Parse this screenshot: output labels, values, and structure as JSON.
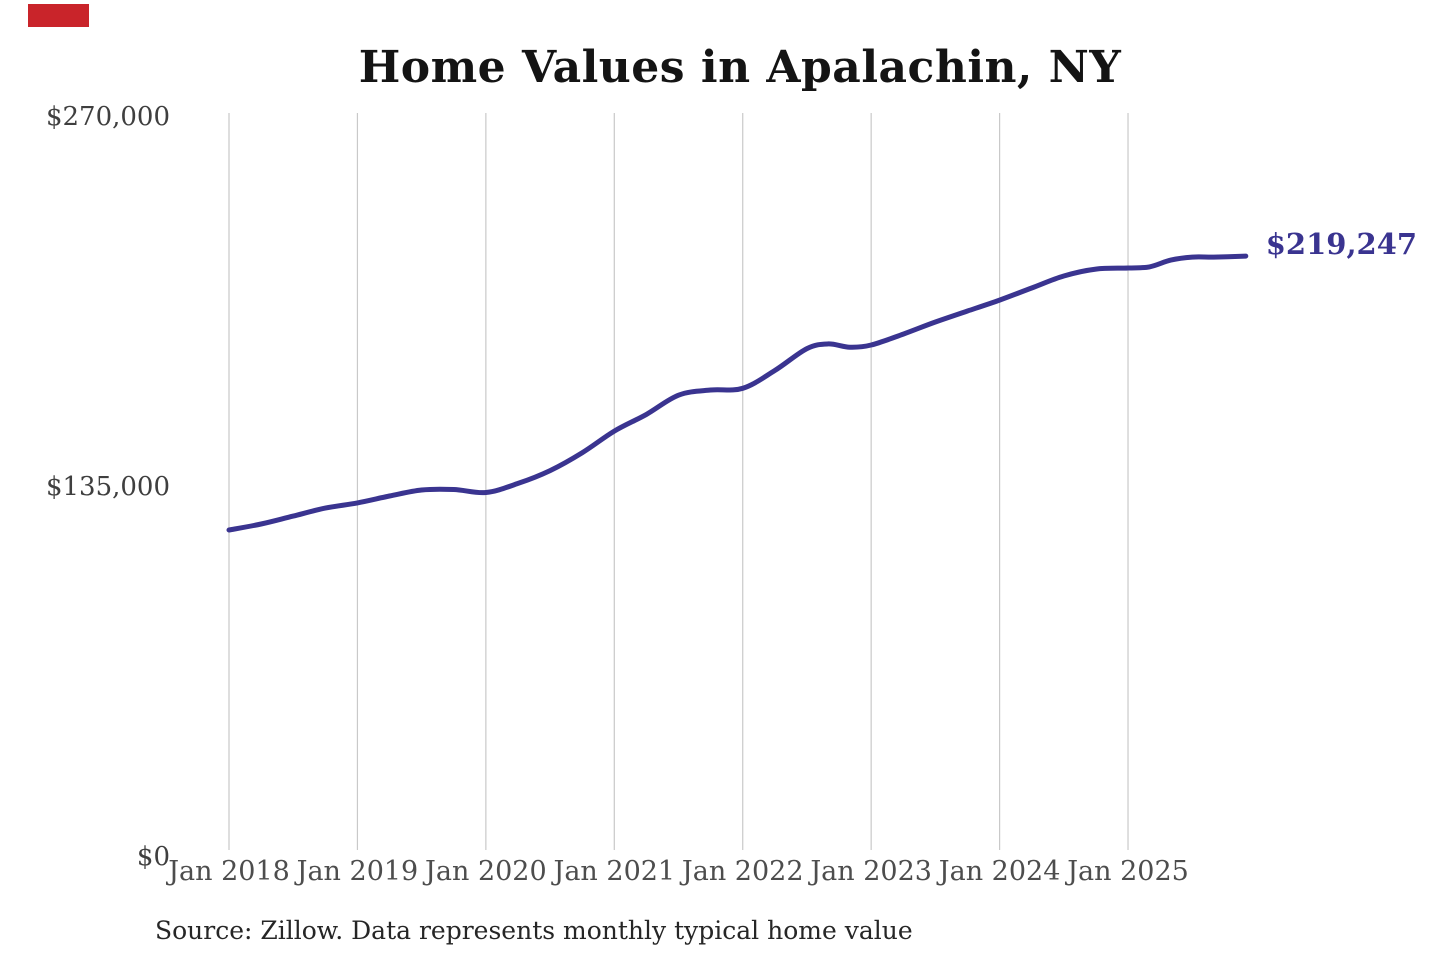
{
  "page": {
    "background": "#ffffff"
  },
  "decoration": {
    "red_marker_color": "#c9242a"
  },
  "title": "Home Values in Apalachin, NY",
  "source_note": "Source: Zillow. Data represents monthly typical home value",
  "chart_data": {
    "type": "line",
    "title": "Home Values in Apalachin, NY",
    "xlabel": "",
    "ylabel": "",
    "ylim": [
      0,
      270000
    ],
    "legend": "none",
    "grid": {
      "vertical": true,
      "horizontal": false,
      "color": "#c9c9c9"
    },
    "end_label": "$219,247",
    "final_value": 219247,
    "yticks": [
      {
        "value": 0,
        "label": "$0"
      },
      {
        "value": 135000,
        "label": "$135,000"
      },
      {
        "value": 270000,
        "label": "$270,000"
      }
    ],
    "xticks": [
      {
        "date": "2018-01",
        "label": "Jan 2018"
      },
      {
        "date": "2019-01",
        "label": "Jan 2019"
      },
      {
        "date": "2020-01",
        "label": "Jan 2020"
      },
      {
        "date": "2021-01",
        "label": "Jan 2021"
      },
      {
        "date": "2022-01",
        "label": "Jan 2022"
      },
      {
        "date": "2023-01",
        "label": "Jan 2023"
      },
      {
        "date": "2024-01",
        "label": "Jan 2024"
      },
      {
        "date": "2025-01",
        "label": "Jan 2025"
      }
    ],
    "series": [
      {
        "name": "Monthly typical home value",
        "color": "#3a3490",
        "points": [
          {
            "date": "2018-01",
            "value": 119300
          },
          {
            "date": "2018-04",
            "value": 121500
          },
          {
            "date": "2018-07",
            "value": 124400
          },
          {
            "date": "2018-10",
            "value": 127300
          },
          {
            "date": "2019-01",
            "value": 129200
          },
          {
            "date": "2019-04",
            "value": 131700
          },
          {
            "date": "2019-07",
            "value": 133900
          },
          {
            "date": "2019-10",
            "value": 134100
          },
          {
            "date": "2020-01",
            "value": 133000
          },
          {
            "date": "2020-04",
            "value": 136300
          },
          {
            "date": "2020-07",
            "value": 141000
          },
          {
            "date": "2020-10",
            "value": 147500
          },
          {
            "date": "2021-01",
            "value": 155400
          },
          {
            "date": "2021-04",
            "value": 161500
          },
          {
            "date": "2021-07",
            "value": 168500
          },
          {
            "date": "2021-10",
            "value": 170400
          },
          {
            "date": "2022-01",
            "value": 171000
          },
          {
            "date": "2022-04",
            "value": 177500
          },
          {
            "date": "2022-07",
            "value": 185500
          },
          {
            "date": "2022-09",
            "value": 187200
          },
          {
            "date": "2022-11",
            "value": 186000
          },
          {
            "date": "2023-01",
            "value": 186800
          },
          {
            "date": "2023-04",
            "value": 190800
          },
          {
            "date": "2023-07",
            "value": 195200
          },
          {
            "date": "2023-10",
            "value": 199200
          },
          {
            "date": "2024-01",
            "value": 203200
          },
          {
            "date": "2024-04",
            "value": 207600
          },
          {
            "date": "2024-07",
            "value": 212000
          },
          {
            "date": "2024-10",
            "value": 214500
          },
          {
            "date": "2025-01",
            "value": 214900
          },
          {
            "date": "2025-03",
            "value": 215300
          },
          {
            "date": "2025-05",
            "value": 217800
          },
          {
            "date": "2025-07",
            "value": 218900
          },
          {
            "date": "2025-09",
            "value": 218900
          },
          {
            "date": "2025-12",
            "value": 219247
          }
        ]
      }
    ]
  }
}
